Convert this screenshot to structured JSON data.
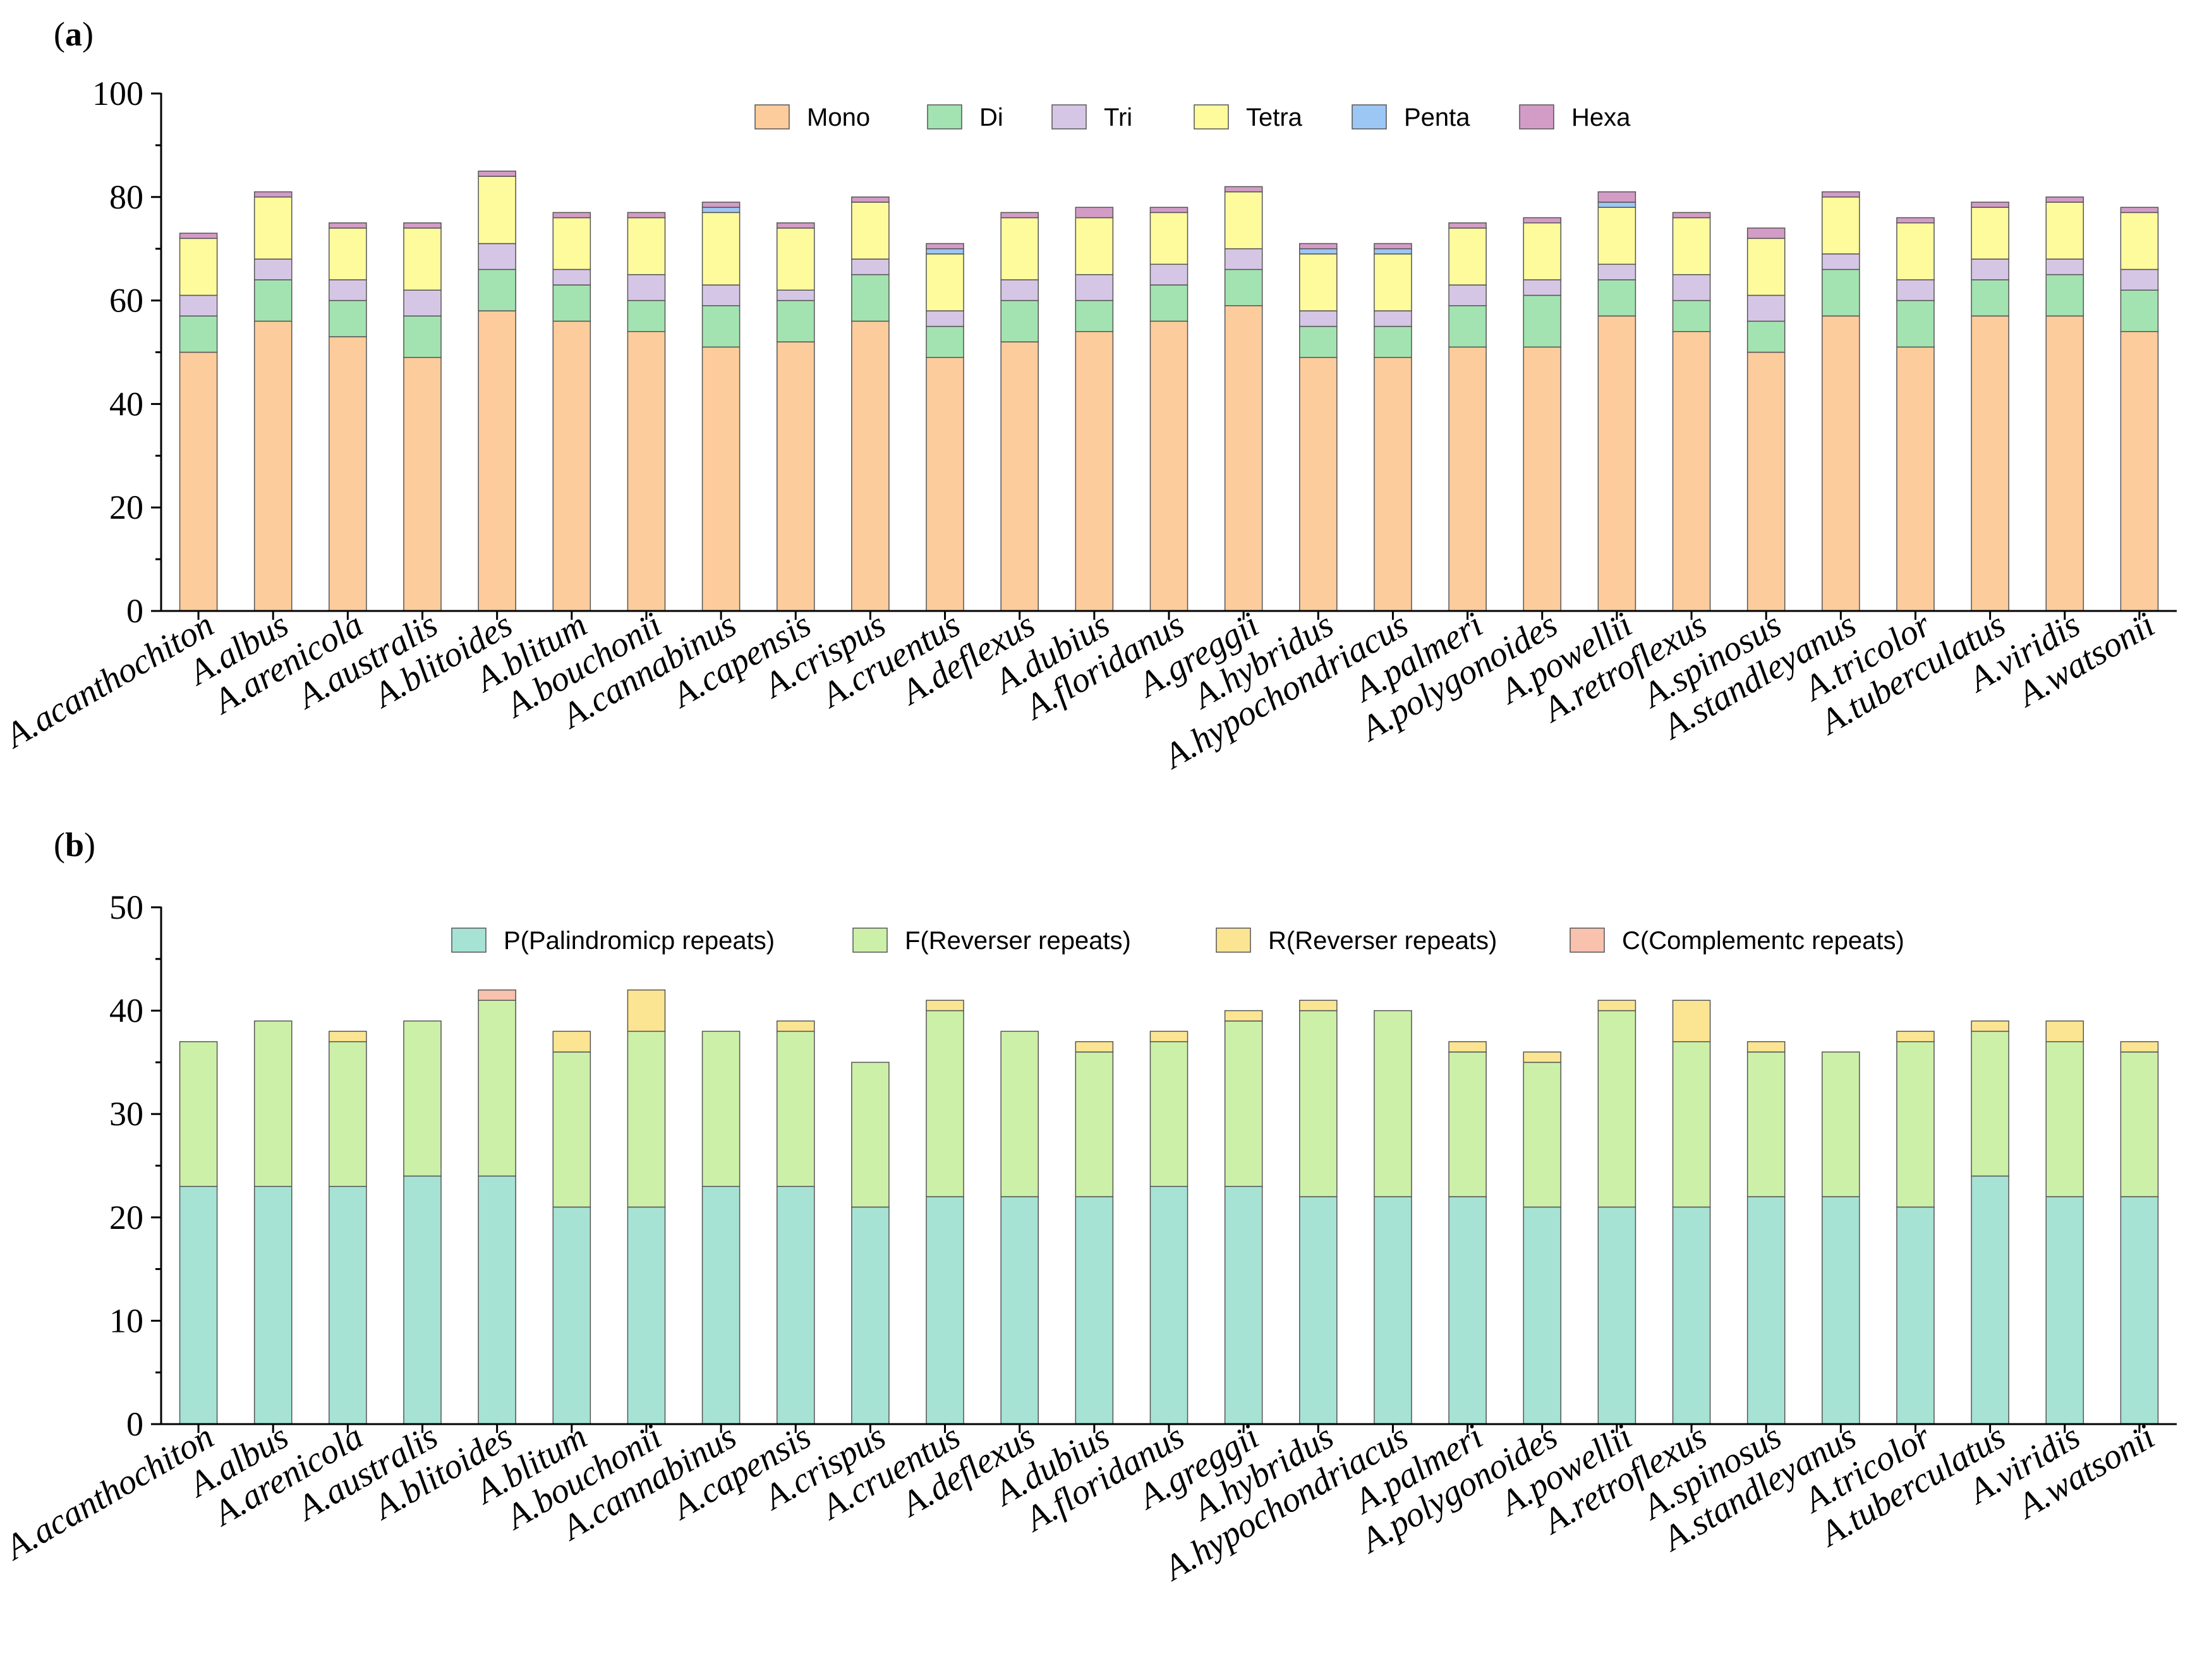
{
  "chart_data": [
    {
      "id": "a",
      "panel_label": "(a)",
      "panel_letter": "a",
      "type": "bar",
      "stacked": true,
      "title": "",
      "xlabel": "",
      "ylabel": "",
      "ylim": [
        0,
        100
      ],
      "yticks": [
        0,
        20,
        40,
        60,
        80,
        100
      ],
      "legend_position": "top-center",
      "categories": [
        "A.acanthochiton",
        "A.albus",
        "A.arenicola",
        "A.australis",
        "A.blitoides",
        "A.blitum",
        "A.bouchonii",
        "A.cannabinus",
        "A.capensis",
        "A.crispus",
        "A.cruentus",
        "A.deflexus",
        "A.dubius",
        "A.floridanus",
        "A.greggii",
        "A.hybridus",
        "A.hypochondriacus",
        "A.palmeri",
        "A.polygonoides",
        "A.powellii",
        "A.retroflexus",
        "A.spinosus",
        "A.standleyanus",
        "A.tricolor",
        "A.tuberculatus",
        "A.viridis",
        "A.watsonii"
      ],
      "series": [
        {
          "name": "Mono",
          "color": "#fdcc9c",
          "values": [
            50,
            56,
            53,
            49,
            58,
            56,
            54,
            51,
            52,
            56,
            49,
            52,
            54,
            56,
            59,
            49,
            49,
            51,
            51,
            57,
            54,
            50,
            57,
            51,
            57,
            57,
            54
          ]
        },
        {
          "name": "Di",
          "color": "#a3e3b1",
          "values": [
            7,
            8,
            7,
            8,
            8,
            7,
            6,
            8,
            8,
            9,
            6,
            8,
            6,
            7,
            7,
            6,
            6,
            8,
            10,
            7,
            6,
            6,
            9,
            9,
            7,
            8,
            8
          ]
        },
        {
          "name": "Tri",
          "color": "#d6c6e6",
          "values": [
            4,
            4,
            4,
            5,
            5,
            3,
            5,
            4,
            2,
            3,
            3,
            4,
            5,
            4,
            4,
            3,
            3,
            4,
            3,
            3,
            5,
            5,
            3,
            4,
            4,
            3,
            4
          ]
        },
        {
          "name": "Tetra",
          "color": "#fdfb9c",
          "values": [
            11,
            12,
            10,
            12,
            13,
            10,
            11,
            14,
            12,
            11,
            11,
            12,
            11,
            10,
            11,
            11,
            11,
            11,
            11,
            11,
            11,
            11,
            11,
            11,
            10,
            11,
            11
          ]
        },
        {
          "name": "Penta",
          "color": "#9cc6f4",
          "values": [
            0,
            0,
            0,
            0,
            0,
            0,
            0,
            1,
            0,
            0,
            1,
            0,
            0,
            0,
            0,
            1,
            1,
            0,
            0,
            1,
            0,
            0,
            0,
            0,
            0,
            0,
            0
          ]
        },
        {
          "name": "Hexa",
          "color": "#d39cc6",
          "values": [
            1,
            1,
            1,
            1,
            1,
            1,
            1,
            1,
            1,
            1,
            1,
            1,
            2,
            1,
            1,
            1,
            1,
            1,
            1,
            2,
            1,
            2,
            1,
            1,
            1,
            1,
            1
          ]
        }
      ]
    },
    {
      "id": "b",
      "panel_label": "(b)",
      "panel_letter": "b",
      "type": "bar",
      "stacked": true,
      "title": "",
      "xlabel": "",
      "ylabel": "",
      "ylim": [
        0,
        50
      ],
      "yticks": [
        0,
        10,
        20,
        30,
        40,
        50
      ],
      "legend_position": "top-center",
      "categories": [
        "A.acanthochiton",
        "A.albus",
        "A.arenicola",
        "A.australis",
        "A.blitoides",
        "A.blitum",
        "A.bouchonii",
        "A.cannabinus",
        "A.capensis",
        "A.crispus",
        "A.cruentus",
        "A.deflexus",
        "A.dubius",
        "A.floridanus",
        "A.greggii",
        "A.hybridus",
        "A.hypochondriacus",
        "A.palmeri",
        "A.polygonoides",
        "A.powellii",
        "A.retroflexus",
        "A.spinosus",
        "A.standleyanus",
        "A.tricolor",
        "A.tuberculatus",
        "A.viridis",
        "A.watsonii"
      ],
      "series": [
        {
          "name": "P(Palindromicp repeats)",
          "color": "#a6e3d4",
          "values": [
            23,
            23,
            23,
            24,
            24,
            21,
            21,
            23,
            23,
            21,
            22,
            22,
            22,
            23,
            23,
            22,
            22,
            22,
            21,
            21,
            21,
            22,
            22,
            21,
            24,
            22,
            22
          ]
        },
        {
          "name": "F(Reverser repeats)",
          "color": "#ccf0a8",
          "values": [
            14,
            16,
            14,
            15,
            17,
            15,
            17,
            15,
            15,
            14,
            18,
            16,
            14,
            14,
            16,
            18,
            18,
            14,
            14,
            19,
            16,
            14,
            14,
            16,
            14,
            15,
            14
          ]
        },
        {
          "name": "R(Reverser repeats)",
          "color": "#fce592",
          "values": [
            0,
            0,
            1,
            0,
            0,
            2,
            4,
            0,
            1,
            0,
            1,
            0,
            1,
            1,
            1,
            1,
            0,
            1,
            1,
            1,
            4,
            1,
            0,
            1,
            1,
            2,
            1
          ]
        },
        {
          "name": "C(Complementc repeats)",
          "color": "#f8c2ae",
          "values": [
            0,
            0,
            0,
            0,
            1,
            0,
            0,
            0,
            0,
            0,
            0,
            0,
            0,
            0,
            0,
            0,
            0,
            0,
            0,
            0,
            0,
            0,
            0,
            0,
            0,
            0,
            0
          ]
        }
      ]
    }
  ]
}
